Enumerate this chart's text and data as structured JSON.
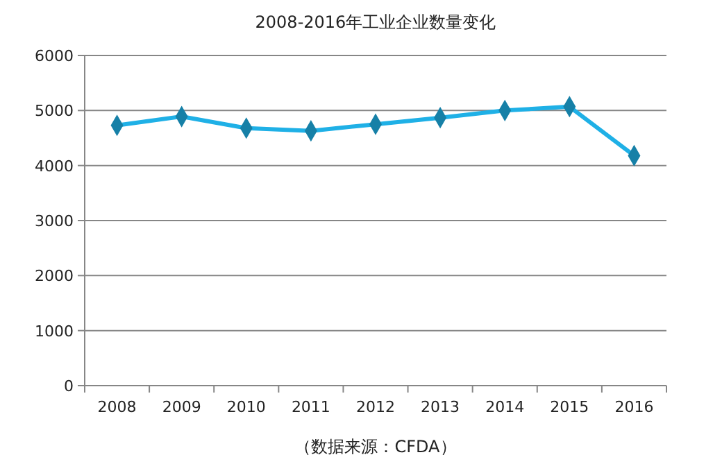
{
  "chart_data": {
    "type": "line",
    "title": "2008-2016年工业企业数量变化",
    "categories": [
      "2008",
      "2009",
      "2010",
      "2011",
      "2012",
      "2013",
      "2014",
      "2015",
      "2016"
    ],
    "series": [
      {
        "color": "#1fb0e6",
        "values": [
          4730,
          4890,
          4680,
          4630,
          4750,
          4870,
          5000,
          5070,
          4180
        ]
      }
    ],
    "ylim": [
      0,
      6000
    ],
    "yticks": [
      0,
      1000,
      2000,
      3000,
      4000,
      5000,
      6000
    ],
    "grid": "y",
    "marker": "diamond",
    "line_style": "solid",
    "annotations": [
      "（数据来源：CFDA）"
    ]
  }
}
